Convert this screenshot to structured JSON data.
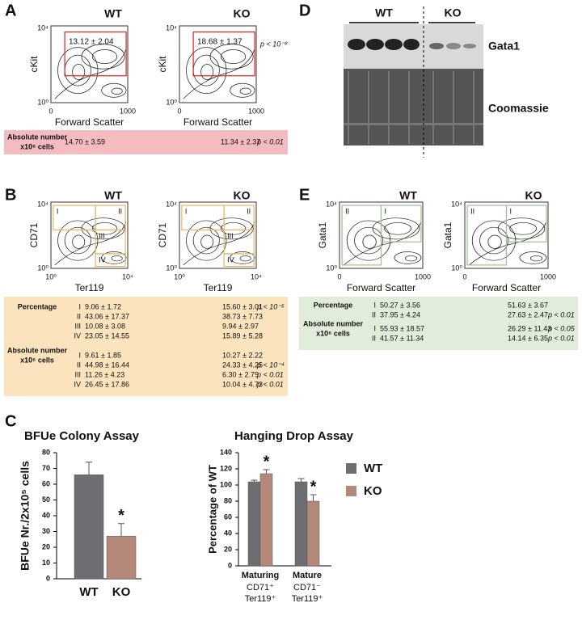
{
  "panels": {
    "A": {
      "label": "A",
      "groups": [
        "WT",
        "KO"
      ],
      "gate_values": [
        "13.12 ± 2.04",
        "18.68 ± 1.37"
      ],
      "p_value": "p < 10⁻⁸",
      "y_axis": "cKit",
      "x_axis": "Forward Scatter",
      "y_ticks": [
        "10⁰",
        "10⁴"
      ],
      "x_ticks": [
        "0",
        "1000"
      ],
      "table": {
        "sections": [
          {
            "heading": [
              "Absolute number",
              "x10⁶ cells"
            ],
            "rows": [
              {
                "wt": "14.70 ± 3.59",
                "ko": "11.34 ± 2.37",
                "p": "p < 0.01"
              }
            ]
          }
        ]
      }
    },
    "B": {
      "label": "B",
      "groups": [
        "WT",
        "KO"
      ],
      "gates": [
        "I",
        "II",
        "III",
        "IV"
      ],
      "y_axis": "CD71",
      "x_axis": "Ter119",
      "y_ticks": [
        "10⁰",
        "10⁴"
      ],
      "x_ticks": [
        "10⁰",
        "10⁴"
      ],
      "table": {
        "sections": [
          {
            "heading": [
              "Percentage"
            ],
            "rows": [
              {
                "gate": "I",
                "wt": "9.06 ± 1.72",
                "ko": "15.60 ± 3.01",
                "p": "p < 10⁻⁵"
              },
              {
                "gate": "II",
                "wt": "43.06 ± 17.37",
                "ko": "38.73 ± 7.73"
              },
              {
                "gate": "III",
                "wt": "10.08 ± 3.08",
                "ko": "9.94 ± 2.97"
              },
              {
                "gate": "IV",
                "wt": "23.05 ± 14.55",
                "ko": "15.89 ± 5.28"
              }
            ]
          },
          {
            "heading": [
              "Absolute number",
              "x10⁶ cells"
            ],
            "rows": [
              {
                "gate": "I",
                "wt": "9.61 ± 1.85",
                "ko": "10.27 ± 2.22"
              },
              {
                "gate": "II",
                "wt": "44.98 ± 16.44",
                "ko": "24.33 ± 4.25",
                "p": "p < 10⁻⁴"
              },
              {
                "gate": "III",
                "wt": "11.26 ± 4.23",
                "ko": "6.30 ± 2.79",
                "p": "p < 0.01"
              },
              {
                "gate": "IV",
                "wt": "26.45 ± 17.86",
                "ko": "10.04 ± 4.73",
                "p": "p < 0.01"
              }
            ]
          }
        ]
      }
    },
    "C": {
      "label": "C"
    },
    "D": {
      "label": "D",
      "groups": [
        "WT",
        "KO"
      ],
      "bands": [
        "Gata1",
        "Coomassie"
      ]
    },
    "E": {
      "label": "E",
      "groups": [
        "WT",
        "KO"
      ],
      "gates": [
        "I",
        "II"
      ],
      "y_axis": "Gata1",
      "x_axis": "Forward Scatter",
      "y_ticks": [
        "10⁰",
        "10⁴"
      ],
      "x_ticks": [
        "0",
        "1000"
      ],
      "table": {
        "sections": [
          {
            "heading": [
              "Percentage"
            ],
            "rows": [
              {
                "gate": "I",
                "wt": "50.27 ± 3.56",
                "ko": "51.63 ± 3.67"
              },
              {
                "gate": "II",
                "wt": "37.95 ± 4.24",
                "ko": "27.63 ± 2.47",
                "p": "p < 0.01"
              }
            ]
          },
          {
            "heading": [
              "Absolute number",
              "x10⁶ cells"
            ],
            "rows": [
              {
                "gate": "I",
                "wt": "55.93 ± 18.57",
                "ko": "26.29 ± 11.43",
                "p": "p < 0.05"
              },
              {
                "gate": "II",
                "wt": "41.57 ± 11.34",
                "ko": "14.14 ± 6.35",
                "p": "p < 0.01"
              }
            ]
          }
        ]
      }
    }
  },
  "chart_data": [
    {
      "type": "bar",
      "title": "BFUe Colony Assay",
      "y_label": "BFUe Nr./2x10⁵ cells",
      "categories": [
        "WT",
        "KO"
      ],
      "values": [
        66,
        27
      ],
      "errors": [
        8,
        8
      ],
      "colors": [
        "#6d6e71",
        "#b5897a"
      ],
      "significance": [
        null,
        "*"
      ],
      "ylim": [
        0,
        80
      ],
      "yticks": [
        0,
        10,
        20,
        30,
        40,
        50,
        60,
        70,
        80
      ]
    },
    {
      "type": "bar",
      "title": "Hanging Drop Assay",
      "y_label": "Percentage of WT",
      "categories": [
        "Maturing",
        "Mature"
      ],
      "category_markers": [
        [
          "CD71⁺",
          "Ter119⁺"
        ],
        [
          "CD71⁻",
          "Ter119⁺"
        ]
      ],
      "series": [
        {
          "name": "WT",
          "color": "#6d6e71",
          "values": [
            104,
            104
          ],
          "errors": [
            2,
            4
          ],
          "significance": [
            null,
            null
          ]
        },
        {
          "name": "KO",
          "color": "#b5897a",
          "values": [
            114,
            80
          ],
          "errors": [
            5,
            8
          ],
          "significance": [
            "*",
            "*"
          ]
        }
      ],
      "ylim": [
        0,
        140
      ],
      "yticks": [
        0,
        20,
        40,
        60,
        80,
        100,
        120,
        140
      ]
    }
  ]
}
